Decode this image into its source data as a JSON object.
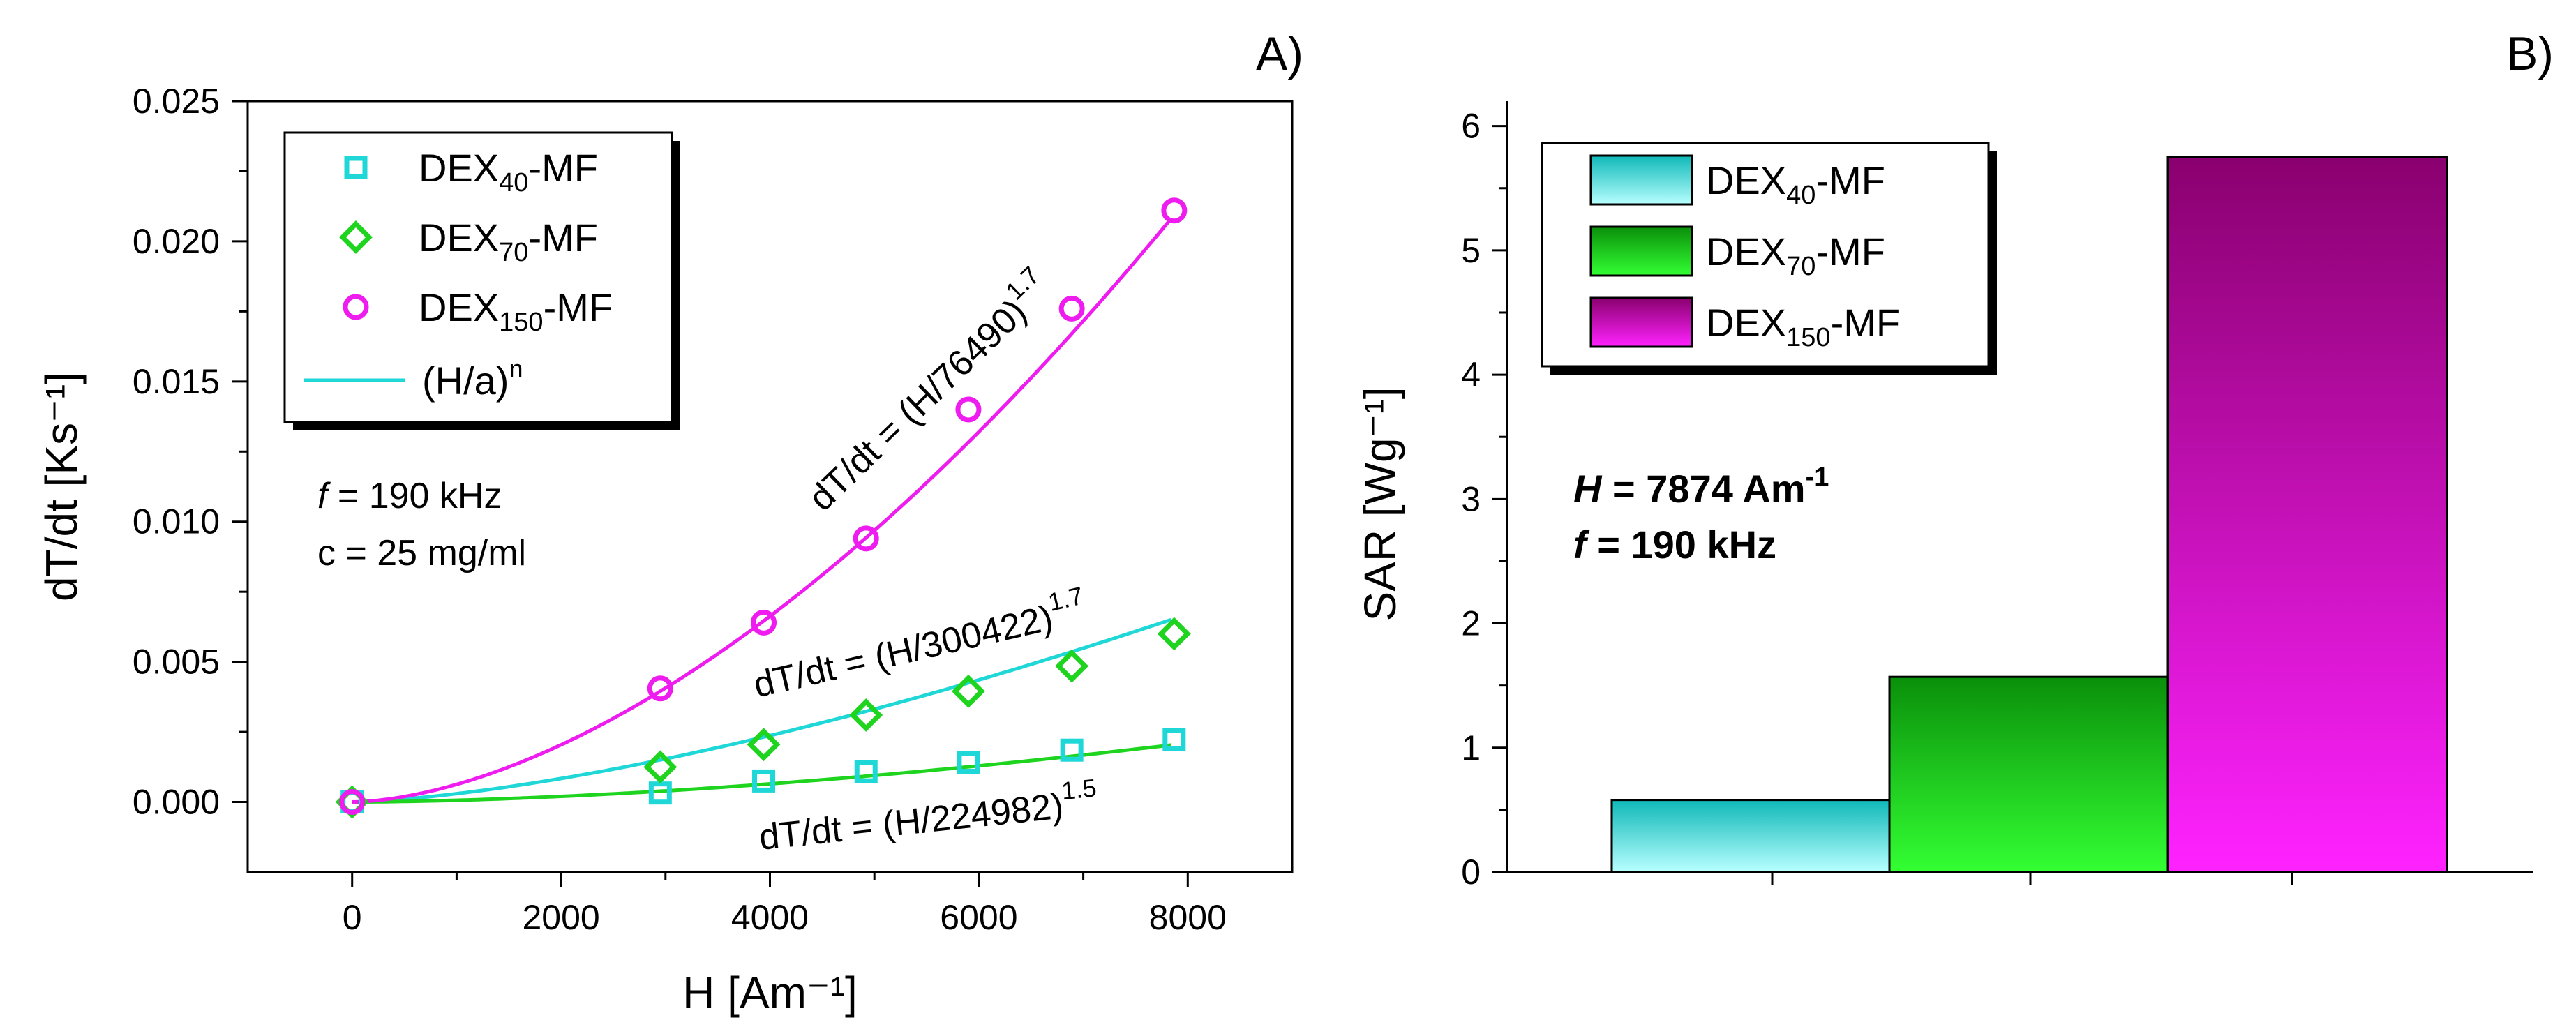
{
  "chart_data": [
    {
      "panel": "A)",
      "type": "scatter",
      "xlabel": "H [Am⁻¹]",
      "ylabel": "dT/dt [Ks⁻¹]",
      "xlim": [
        -1000,
        9000
      ],
      "ylim": [
        -0.0025,
        0.025
      ],
      "x_ticks": [
        0,
        2000,
        4000,
        6000,
        8000
      ],
      "y_ticks": [
        0.0,
        0.005,
        0.01,
        0.015,
        0.02,
        0.025
      ],
      "x_tick_labels": [
        "0",
        "2000",
        "4000",
        "6000",
        "8000"
      ],
      "y_tick_labels": [
        "0.000",
        "0.005",
        "0.010",
        "0.015",
        "0.020",
        "0.025"
      ],
      "series": [
        {
          "name": "DEX",
          "sub": "40",
          "suffix": "-MF",
          "marker": "square",
          "color": "#1fd7d7",
          "x": [
            0,
            2950,
            3940,
            4920,
            5900,
            6890,
            7870
          ],
          "y": [
            0.0,
            0.00032,
            0.00075,
            0.00108,
            0.00142,
            0.00185,
            0.00222
          ],
          "fit": {
            "a": 224982,
            "n": 1.5
          }
        },
        {
          "name": "DEX",
          "sub": "70",
          "suffix": "-MF",
          "marker": "diamond",
          "color": "#1fd41f",
          "x": [
            0,
            2950,
            3940,
            4920,
            5900,
            6890,
            7870
          ],
          "y": [
            0.0,
            0.00125,
            0.00205,
            0.0031,
            0.00395,
            0.00485,
            0.006
          ],
          "fit": {
            "a": 300422,
            "n": 1.7
          }
        },
        {
          "name": "DEX",
          "sub": "150",
          "suffix": "-MF",
          "marker": "circle",
          "color": "#ee1cee",
          "x": [
            0,
            2950,
            3940,
            4920,
            5900,
            6890,
            7870
          ],
          "y": [
            0.0,
            0.00405,
            0.0064,
            0.0094,
            0.014,
            0.0176,
            0.0211
          ],
          "fit": {
            "a": 76490,
            "n": 1.7
          }
        }
      ],
      "fit_legend": {
        "label": "(H/a)",
        "sup": "n"
      },
      "annotations": [
        {
          "prefix": "dT/dt = (H/76490)",
          "sup": "1.7"
        },
        {
          "prefix": "dT/dt = (H/300422)",
          "sup": "1.7"
        },
        {
          "prefix": "dT/dt = (H/224982)",
          "sup": "1.5"
        }
      ],
      "conditions": {
        "f_label": "f",
        "f_value": " = 190 kHz",
        "c_text": "c = 25 mg/ml"
      }
    },
    {
      "panel": "B)",
      "type": "bar",
      "ylabel": "SAR [Wg⁻¹]",
      "ylim": [
        0,
        6.2
      ],
      "y_ticks": [
        0,
        1,
        2,
        3,
        4,
        5,
        6
      ],
      "y_tick_labels": [
        "0",
        "1",
        "2",
        "3",
        "4",
        "5",
        "6"
      ],
      "categories": [
        "DEX40-MF",
        "DEX70-MF",
        "DEX150-MF"
      ],
      "bars": [
        {
          "name": "DEX",
          "sub": "40",
          "suffix": "-MF",
          "value": 0.58,
          "color_top": "#0fb8b8",
          "color_bottom": "#b8ffff"
        },
        {
          "name": "DEX",
          "sub": "70",
          "suffix": "-MF",
          "value": 1.57,
          "color_top": "#0a8f0a",
          "color_bottom": "#33ff33"
        },
        {
          "name": "DEX",
          "sub": "150",
          "suffix": "-MF",
          "value": 5.75,
          "color_top": "#8a006f",
          "color_bottom": "#ff22ff"
        }
      ],
      "conditions": {
        "h_label": "H",
        "h_value": " = 7874 Am",
        "h_sup": "-1",
        "f_label": "f",
        "f_value": " = 190 kHz"
      }
    }
  ]
}
